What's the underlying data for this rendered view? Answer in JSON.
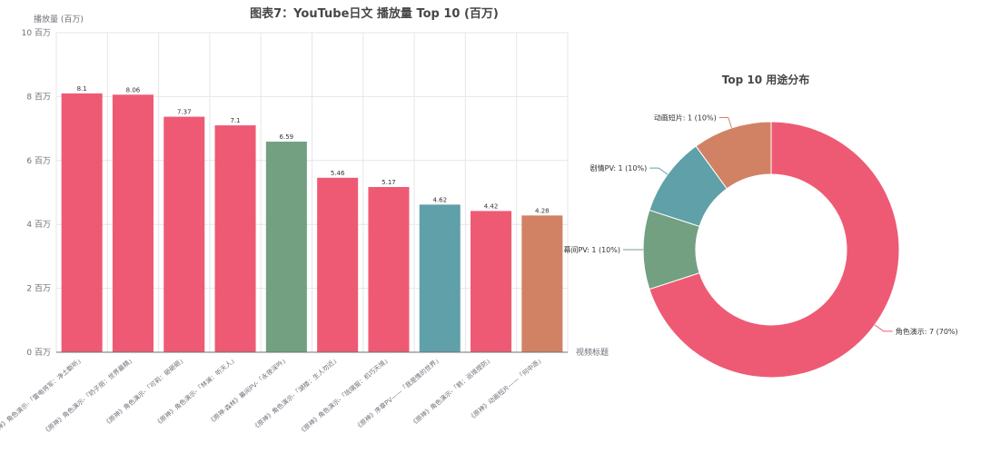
{
  "chart_data": [
    {
      "type": "bar",
      "title": "图表7：YouTube日文 播放量 Top 10 (百万)",
      "ylabel": "播放量 (百万)",
      "xlabel": "视频标题",
      "ylim": [
        0,
        10
      ],
      "yticks": [
        {
          "value": 0,
          "label": "0 百万"
        },
        {
          "value": 2,
          "label": "2 百万"
        },
        {
          "value": 4,
          "label": "4 百万"
        },
        {
          "value": 6,
          "label": "6 百万"
        },
        {
          "value": 8,
          "label": "8 百万"
        },
        {
          "value": 10,
          "label": "10 百万"
        }
      ],
      "grid": true,
      "categories": [
        "《原神》角色演示-「雷电将军：净土斷听」",
        "《原神》角色演示-「奶子丽：世界最精」",
        "《原神》角色演示-「可莉：砸砸砸」",
        "《原神》角色演示-「林澜：听天人」",
        "《原神·森林》幕间PV-「永夜深吟」",
        "《原神》角色演示-「湖楼：生人勿近」",
        "《原神》角色演示-「琉璃窗：机巧天境」",
        "《原神》序章PV——「我是惟的世界」",
        "《原神》角色演示-「鹤：巡境提防」",
        "《原神》动画短片——「何中逐」"
      ],
      "values": [
        8.1,
        8.06,
        7.37,
        7.1,
        6.59,
        5.46,
        5.17,
        4.62,
        4.42,
        4.28
      ],
      "value_labels": [
        "8.1",
        "8.06",
        "7.37",
        "7.1",
        "6.59",
        "5.46",
        "5.17",
        "4.62",
        "4.42",
        "4.28"
      ],
      "bar_colors": [
        "#ee5a74",
        "#ee5a74",
        "#ee5a74",
        "#ee5a74",
        "#72a080",
        "#ee5a74",
        "#ee5a74",
        "#60a0a8",
        "#ee5a74",
        "#d28264"
      ]
    },
    {
      "type": "pie",
      "title": "Top 10 用途分布",
      "slices": [
        {
          "name": "角色演示",
          "value": 7,
          "label": "角色演示: 7 (70%)",
          "color": "#ee5a74"
        },
        {
          "name": "幕间PV",
          "value": 1,
          "label": "幕间PV: 1 (10%)",
          "color": "#72a080"
        },
        {
          "name": "剧情PV",
          "value": 1,
          "label": "剧情PV: 1 (10%)",
          "color": "#60a0a8"
        },
        {
          "name": "动画短片",
          "value": 1,
          "label": "动画短片: 1 (10%)",
          "color": "#d28264"
        }
      ]
    }
  ]
}
